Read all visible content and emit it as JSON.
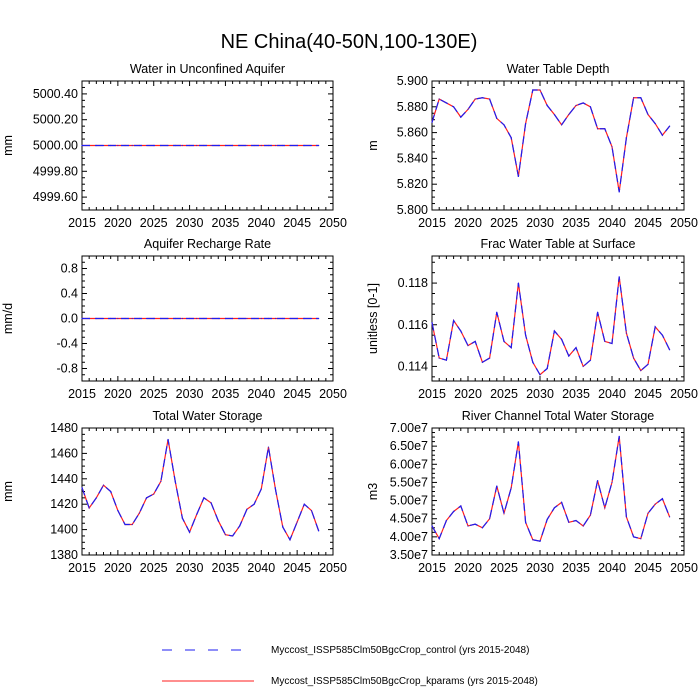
{
  "figure_title": "NE China(40-50N,100-130E)",
  "legend": [
    {
      "label": "Myccost_ISSP585Clm50BgcCrop_control (yrs 2015-2048)",
      "color": "#1e1ef0",
      "dash": "dashed"
    },
    {
      "label": "Myccost_ISSP585Clm50BgcCrop_kparams (yrs 2015-2048)",
      "color": "#ff1e1e",
      "dash": "solid"
    }
  ],
  "chart_data": [
    {
      "type": "line",
      "title": "Water in Unconfined Aquifer",
      "ylabel": "mm",
      "xlim": [
        2015,
        2050
      ],
      "ylim": [
        4999.5,
        5000.5
      ],
      "xticks": [
        "2015",
        "2020",
        "2025",
        "2030",
        "2035",
        "2040",
        "2045",
        "2050"
      ],
      "yticks": [
        {
          "v": 5000.4,
          "label": "5000.40"
        },
        {
          "v": 5000.2,
          "label": "5000.20"
        },
        {
          "v": 5000.0,
          "label": "5000.00"
        },
        {
          "v": 4999.8,
          "label": "4999.80"
        },
        {
          "v": 4999.6,
          "label": "4999.60"
        }
      ],
      "x_start": 2015,
      "values": [
        5000,
        5000,
        5000,
        5000,
        5000,
        5000,
        5000,
        5000,
        5000,
        5000,
        5000,
        5000,
        5000,
        5000,
        5000,
        5000,
        5000,
        5000,
        5000,
        5000,
        5000,
        5000,
        5000,
        5000,
        5000,
        5000,
        5000,
        5000,
        5000,
        5000,
        5000,
        5000,
        5000,
        5000
      ]
    },
    {
      "type": "line",
      "title": "Water Table Depth",
      "ylabel": "m",
      "xlim": [
        2015,
        2050
      ],
      "ylim": [
        5.8,
        5.9
      ],
      "xticks": [
        "2015",
        "2020",
        "2025",
        "2030",
        "2035",
        "2040",
        "2045",
        "2050"
      ],
      "yticks": [
        {
          "v": 5.9,
          "label": "5.900"
        },
        {
          "v": 5.88,
          "label": "5.880"
        },
        {
          "v": 5.86,
          "label": "5.860"
        },
        {
          "v": 5.84,
          "label": "5.840"
        },
        {
          "v": 5.82,
          "label": "5.820"
        },
        {
          "v": 5.8,
          "label": "5.800"
        }
      ],
      "x_start": 2015,
      "values": [
        5.868,
        5.886,
        5.883,
        5.88,
        5.872,
        5.878,
        5.886,
        5.887,
        5.886,
        5.871,
        5.866,
        5.856,
        5.826,
        5.867,
        5.893,
        5.893,
        5.881,
        5.874,
        5.866,
        5.874,
        5.881,
        5.883,
        5.88,
        5.863,
        5.863,
        5.849,
        5.814,
        5.856,
        5.887,
        5.887,
        5.874,
        5.867,
        5.858,
        5.865
      ]
    },
    {
      "type": "line",
      "title": "Aquifer Recharge Rate",
      "ylabel": "mm/d",
      "xlim": [
        2015,
        2050
      ],
      "ylim": [
        -1.0,
        1.0
      ],
      "xticks": [
        "2015",
        "2020",
        "2025",
        "2030",
        "2035",
        "2040",
        "2045",
        "2050"
      ],
      "yticks": [
        {
          "v": 0.8,
          "label": "0.8"
        },
        {
          "v": 0.4,
          "label": "0.4"
        },
        {
          "v": 0.0,
          "label": "0.0"
        },
        {
          "v": -0.4,
          "label": "-0.4"
        },
        {
          "v": -0.8,
          "label": "-0.8"
        }
      ],
      "x_start": 2015,
      "values": [
        0,
        0,
        0,
        0,
        0,
        0,
        0,
        0,
        0,
        0,
        0,
        0,
        0,
        0,
        0,
        0,
        0,
        0,
        0,
        0,
        0,
        0,
        0,
        0,
        0,
        0,
        0,
        0,
        0,
        0,
        0,
        0,
        0,
        0
      ]
    },
    {
      "type": "line",
      "title": "Frac Water Table at Surface",
      "ylabel": "unitless [0-1]",
      "xlim": [
        2015,
        2050
      ],
      "ylim": [
        0.1133,
        0.1193
      ],
      "xticks": [
        "2015",
        "2020",
        "2025",
        "2030",
        "2035",
        "2040",
        "2045",
        "2050"
      ],
      "yticks": [
        {
          "v": 0.118,
          "label": "0.118"
        },
        {
          "v": 0.116,
          "label": "0.116"
        },
        {
          "v": 0.114,
          "label": "0.114"
        }
      ],
      "x_start": 2015,
      "values": [
        0.1161,
        0.1144,
        0.1143,
        0.1162,
        0.1157,
        0.115,
        0.1152,
        0.1142,
        0.1144,
        0.1166,
        0.1152,
        0.1149,
        0.118,
        0.1155,
        0.1142,
        0.1136,
        0.1139,
        0.1157,
        0.1153,
        0.1145,
        0.1149,
        0.114,
        0.1143,
        0.1166,
        0.1152,
        0.1151,
        0.1183,
        0.1156,
        0.1144,
        0.1138,
        0.1141,
        0.1159,
        0.1155,
        0.1148
      ]
    },
    {
      "type": "line",
      "title": "Total Water Storage",
      "ylabel": "mm",
      "xlim": [
        2015,
        2050
      ],
      "ylim": [
        1380,
        1480
      ],
      "xticks": [
        "2015",
        "2020",
        "2025",
        "2030",
        "2035",
        "2040",
        "2045",
        "2050"
      ],
      "yticks": [
        {
          "v": 1480,
          "label": "1480"
        },
        {
          "v": 1460,
          "label": "1460"
        },
        {
          "v": 1440,
          "label": "1440"
        },
        {
          "v": 1420,
          "label": "1420"
        },
        {
          "v": 1400,
          "label": "1400"
        },
        {
          "v": 1380,
          "label": "1380"
        }
      ],
      "x_start": 2015,
      "values": [
        1433,
        1417,
        1425,
        1435,
        1430,
        1415,
        1404,
        1404,
        1413,
        1425,
        1428,
        1438,
        1471,
        1438,
        1409,
        1398,
        1412,
        1425,
        1421,
        1407,
        1396,
        1395,
        1403,
        1416,
        1420,
        1432,
        1465,
        1431,
        1402,
        1392,
        1406,
        1420,
        1415,
        1399
      ]
    },
    {
      "type": "line",
      "title": "River Channel Total Water Storage",
      "ylabel": "m3",
      "xlim": [
        2015,
        2050
      ],
      "ylim": [
        35000000,
        70000000
      ],
      "xticks": [
        "2015",
        "2020",
        "2025",
        "2030",
        "2035",
        "2040",
        "2045",
        "2050"
      ],
      "yticks": [
        {
          "v": 70000000,
          "label": "7.00e7"
        },
        {
          "v": 65000000,
          "label": "6.50e7"
        },
        {
          "v": 60000000,
          "label": "6.00e7"
        },
        {
          "v": 55000000,
          "label": "5.50e7"
        },
        {
          "v": 50000000,
          "label": "5.00e7"
        },
        {
          "v": 45000000,
          "label": "4.50e7"
        },
        {
          "v": 40000000,
          "label": "4.00e7"
        },
        {
          "v": 35000000,
          "label": "3.50e7"
        }
      ],
      "x_start": 2015,
      "values": [
        43000000,
        39500000,
        44500000,
        47000000,
        48500000,
        43000000,
        43500000,
        42500000,
        45000000,
        54000000,
        46500000,
        53500000,
        66200000,
        44000000,
        39200000,
        38800000,
        44800000,
        48000000,
        49500000,
        44000000,
        44500000,
        43000000,
        46000000,
        55500000,
        48000000,
        55000000,
        67700000,
        45500000,
        40000000,
        39500000,
        46500000,
        49000000,
        50500000,
        45500000
      ]
    }
  ]
}
